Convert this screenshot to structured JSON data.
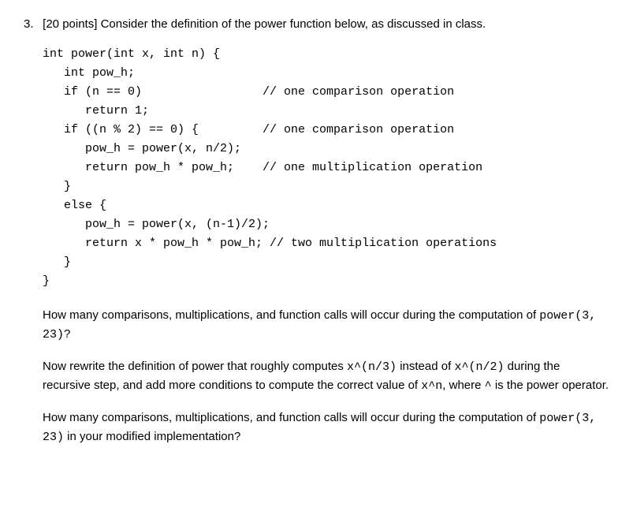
{
  "question": {
    "number": "3.",
    "points": "[20 points]",
    "prompt": "Consider the definition of the power function below, as discussed in class."
  },
  "code": {
    "l1": "int power(int x, int n) {",
    "l2": "   int pow_h;",
    "l3": "   if (n == 0)                 // one comparison operation",
    "l4": "      return 1;",
    "l5": "   if ((n % 2) == 0) {         // one comparison operation",
    "l6": "      pow_h = power(x, n/2);",
    "l7": "      return pow_h * pow_h;    // one multiplication operation",
    "l8": "   }",
    "l9": "   else {",
    "l10": "      pow_h = power(x, (n-1)/2);",
    "l11": "      return x * pow_h * pow_h; // two multiplication operations",
    "l12": "   }",
    "l13": "}"
  },
  "p1_a": "How many comparisons, multiplications, and function calls will occur during the computation of ",
  "p1_code": "power(3, 23)",
  "p1_b": "?",
  "p2_a": "Now rewrite the definition of power that roughly computes ",
  "p2_code1": "x^(n/3)",
  "p2_b": " instead of ",
  "p2_code2": "x^(n/2)",
  "p2_c": " during the recursive step, and add more conditions to compute the correct value of ",
  "p2_code3": "x^n",
  "p2_d": ", where ",
  "p2_code4": "^",
  "p2_e": " is the power operator.",
  "p3_a": "How many comparisons, multiplications, and function calls will occur during the computation of ",
  "p3_code": "power(3, 23)",
  "p3_b": " in your modified implementation?"
}
